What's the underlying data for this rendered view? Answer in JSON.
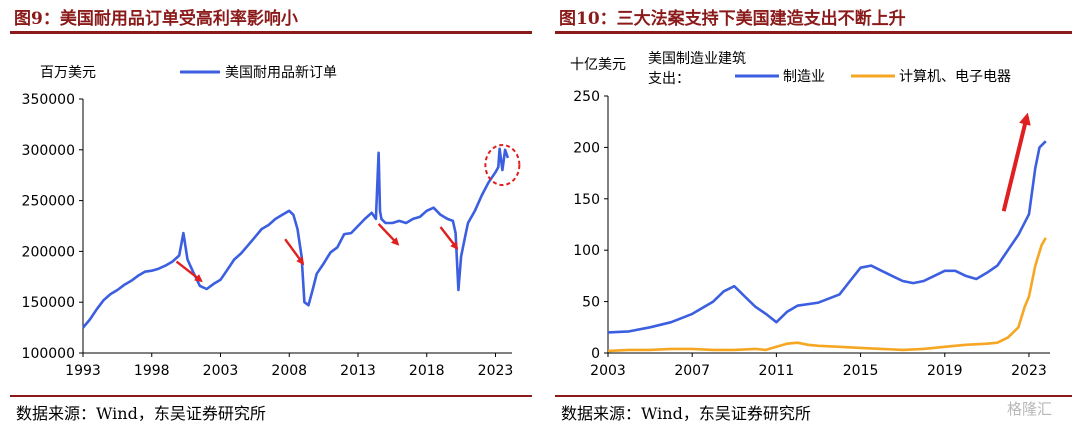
{
  "panels": [
    {
      "title": "图9：美国耐用品订单受高利率影响小",
      "source": "数据来源：Wind，东吴证券研究所"
    },
    {
      "title": "图10：三大法案支持下美国建造支出不断上升",
      "source": "数据来源：Wind，东吴证券研究所"
    }
  ],
  "watermark": "格隆汇",
  "chart_data": [
    {
      "type": "line",
      "ylabel": "百万美元",
      "xlim": [
        1993,
        2024.2
      ],
      "ylim": [
        100000,
        350000
      ],
      "xticks": [
        "1993",
        "1998",
        "2003",
        "2008",
        "2013",
        "2018",
        "2023"
      ],
      "yticks": [
        "100000",
        "150000",
        "200000",
        "250000",
        "300000",
        "350000"
      ],
      "grid": false,
      "legend_position": "top-center",
      "series": [
        {
          "name": "美国耐用品新订单",
          "color": "#3b5fe0",
          "x": [
            1993,
            1993.5,
            1994,
            1994.5,
            1995,
            1995.5,
            1996,
            1996.5,
            1997,
            1997.5,
            1998,
            1998.5,
            1999,
            1999.5,
            2000,
            2000.3,
            2000.6,
            2001,
            2001.5,
            2002,
            2002.5,
            2003,
            2003.5,
            2004,
            2004.5,
            2005,
            2005.5,
            2006,
            2006.5,
            2007,
            2007.5,
            2008,
            2008.3,
            2008.6,
            2008.9,
            2009.1,
            2009.4,
            2009.7,
            2010,
            2010.5,
            2011,
            2011.5,
            2012,
            2012.5,
            2013,
            2013.5,
            2014,
            2014.3,
            2014.5,
            2014.6,
            2014.7,
            2015,
            2015.5,
            2016,
            2016.5,
            2017,
            2017.5,
            2018,
            2018.5,
            2019,
            2019.5,
            2019.9,
            2020.1,
            2020.3,
            2020.5,
            2020.8,
            2021,
            2021.5,
            2022,
            2022.5,
            2023,
            2023.2,
            2023.3,
            2023.5,
            2023.7,
            2023.9
          ],
          "y": [
            125000,
            133000,
            143000,
            152000,
            158000,
            162000,
            167000,
            171000,
            176000,
            180000,
            181000,
            183000,
            186000,
            190000,
            196000,
            218000,
            192000,
            180000,
            166000,
            163000,
            168000,
            172000,
            182000,
            192000,
            198000,
            206000,
            214000,
            222000,
            226000,
            232000,
            236000,
            240000,
            236000,
            222000,
            195000,
            150000,
            147000,
            162000,
            178000,
            188000,
            199000,
            204000,
            217000,
            218000,
            225000,
            232000,
            238000,
            232000,
            297000,
            240000,
            232000,
            228000,
            228000,
            230000,
            228000,
            232000,
            234000,
            240000,
            243000,
            236000,
            232000,
            230000,
            218000,
            162000,
            195000,
            215000,
            228000,
            240000,
            255000,
            268000,
            278000,
            283000,
            301000,
            280000,
            300000,
            292000
          ]
        }
      ]
    },
    {
      "type": "line",
      "ylabel": "十亿美元",
      "xlim": [
        2003,
        2024
      ],
      "ylim": [
        0,
        250
      ],
      "xticks": [
        "2003",
        "2007",
        "2011",
        "2015",
        "2019",
        "2023"
      ],
      "yticks": [
        "0",
        "50",
        "100",
        "150",
        "200",
        "250"
      ],
      "grid": false,
      "legend_position": "top-left",
      "legend_title": "美国制造业建筑支出：",
      "series": [
        {
          "name": "制造业",
          "color": "#3b5fe0",
          "x": [
            2003,
            2004,
            2005,
            2006,
            2007,
            2008,
            2008.5,
            2009,
            2009.5,
            2010,
            2010.5,
            2011,
            2011.5,
            2012,
            2013,
            2014,
            2014.5,
            2015,
            2015.5,
            2016,
            2016.5,
            2017,
            2017.5,
            2018,
            2018.5,
            2019,
            2019.5,
            2020,
            2020.5,
            2021,
            2021.5,
            2022,
            2022.5,
            2023,
            2023.3,
            2023.5,
            2023.8
          ],
          "y": [
            20,
            21,
            25,
            30,
            38,
            50,
            60,
            65,
            55,
            45,
            38,
            30,
            40,
            46,
            49,
            57,
            70,
            83,
            85,
            80,
            75,
            70,
            68,
            70,
            75,
            80,
            80,
            75,
            72,
            78,
            85,
            100,
            115,
            135,
            180,
            200,
            206
          ]
        },
        {
          "name": "计算机、电子电器",
          "color": "#f5a623",
          "x": [
            2003,
            2004,
            2005,
            2006,
            2007,
            2008,
            2009,
            2010,
            2010.5,
            2011,
            2011.5,
            2012,
            2012.5,
            2013,
            2014,
            2015,
            2016,
            2017,
            2018,
            2019,
            2020,
            2021,
            2021.5,
            2022,
            2022.5,
            2022.8,
            2023,
            2023.3,
            2023.6,
            2023.8
          ],
          "y": [
            2,
            3,
            3,
            4,
            4,
            3,
            3,
            4,
            3,
            6,
            9,
            10,
            8,
            7,
            6,
            5,
            4,
            3,
            4,
            6,
            8,
            9,
            10,
            15,
            25,
            45,
            55,
            85,
            105,
            112
          ]
        }
      ]
    }
  ]
}
